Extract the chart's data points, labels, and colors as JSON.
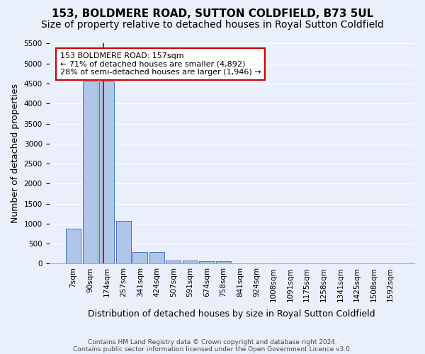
{
  "title_line1": "153, BOLDMERE ROAD, SUTTON COLDFIELD, B73 5UL",
  "title_line2": "Size of property relative to detached houses in Royal Sutton Coldfield",
  "xlabel": "Distribution of detached houses by size in Royal Sutton Coldfield",
  "ylabel": "Number of detached properties",
  "footnote1": "Contains HM Land Registry data © Crown copyright and database right 2024.",
  "footnote2": "Contains public sector information licensed under the Open Government Licence v3.0.",
  "bin_labels": [
    "7sqm",
    "90sqm",
    "174sqm",
    "257sqm",
    "341sqm",
    "424sqm",
    "507sqm",
    "591sqm",
    "674sqm",
    "758sqm",
    "841sqm",
    "924sqm",
    "1008sqm",
    "1091sqm",
    "1175sqm",
    "1258sqm",
    "1341sqm",
    "1425sqm",
    "1508sqm",
    "1592sqm"
  ],
  "bar_heights": [
    870,
    4550,
    4560,
    1060,
    290,
    290,
    80,
    80,
    50,
    50,
    0,
    0,
    0,
    0,
    0,
    0,
    0,
    0,
    0,
    0
  ],
  "bar_color": "#aec6e8",
  "bar_edge_color": "#4472c4",
  "annotation_line1": "153 BOLDMERE ROAD: 157sqm",
  "annotation_line2": "← 71% of detached houses are smaller (4,892)",
  "annotation_line3": "28% of semi-detached houses are larger (1,946) →",
  "vline_color": "#cc0000",
  "annotation_box_edgecolor": "#cc0000",
  "ylim": [
    0,
    5500
  ],
  "yticks": [
    0,
    500,
    1000,
    1500,
    2000,
    2500,
    3000,
    3500,
    4000,
    4500,
    5000,
    5500
  ],
  "bg_color": "#eaf0fb",
  "axes_bg_color": "#eaf0fb",
  "grid_color": "#ffffff",
  "title_fontsize": 11,
  "subtitle_fontsize": 10,
  "axis_label_fontsize": 9,
  "tick_fontsize": 7.5,
  "annotation_fontsize": 8,
  "vline_x": 1.8
}
